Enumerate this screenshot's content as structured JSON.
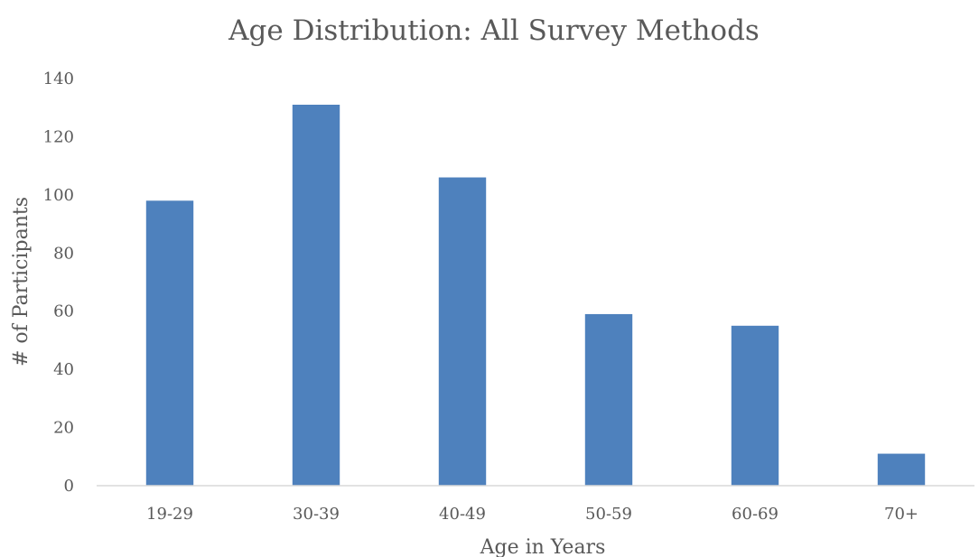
{
  "chart_data": {
    "type": "bar",
    "title": "Age Distribution: All Survey Methods",
    "xlabel": "Age in Years",
    "ylabel": "# of Participants",
    "categories": [
      "19-29",
      "30-39",
      "40-49",
      "50-59",
      "60-69",
      "70+"
    ],
    "values": [
      98,
      131,
      106,
      59,
      55,
      11
    ],
    "ylim": [
      0,
      140
    ],
    "yticks": [
      0,
      20,
      40,
      60,
      80,
      100,
      120,
      140
    ],
    "grid": false,
    "legend": "none",
    "bar_color": "#4e81bd"
  }
}
